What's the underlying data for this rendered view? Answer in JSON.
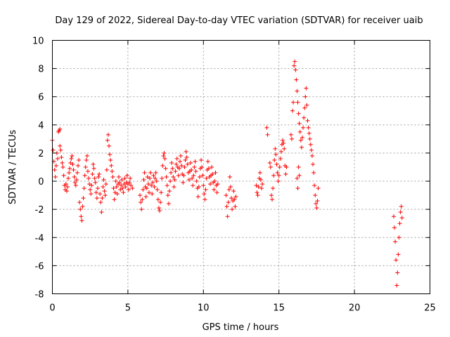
{
  "chart_data": {
    "type": "scatter",
    "title": "Day 129 of 2022, Sidereal Day-to-day VTEC variation (SDTVAR) for receiver uaib",
    "xlabel": "GPS time / hours",
    "ylabel": "SDTVAR / TECUs",
    "xlim": [
      0,
      25
    ],
    "ylim": [
      -8,
      10
    ],
    "xticks": [
      "0",
      "5",
      "10",
      "15",
      "20",
      "25"
    ],
    "yticks": [
      "-8",
      "-6",
      "-4",
      "-2",
      "0",
      "2",
      "4",
      "6",
      "8",
      "10"
    ],
    "grid": true,
    "marker": "plus",
    "color": "#ff0000",
    "series": [
      {
        "name": "SDTVAR",
        "points": [
          [
            0.0,
            2.9
          ],
          [
            0.05,
            2.2
          ],
          [
            0.1,
            1.4
          ],
          [
            0.15,
            0.8
          ],
          [
            0.2,
            0.3
          ],
          [
            0.25,
            1.1
          ],
          [
            0.3,
            2.0
          ],
          [
            0.35,
            1.6
          ],
          [
            0.4,
            3.5
          ],
          [
            0.45,
            3.6
          ],
          [
            0.5,
            3.7
          ],
          [
            0.5,
            2.5
          ],
          [
            0.55,
            2.2
          ],
          [
            0.6,
            1.7
          ],
          [
            0.65,
            1.3
          ],
          [
            0.7,
            1.0
          ],
          [
            0.75,
            0.4
          ],
          [
            0.8,
            -0.3
          ],
          [
            0.85,
            -0.6
          ],
          [
            0.9,
            -0.2
          ],
          [
            0.95,
            -0.7
          ],
          [
            1.0,
            -0.4
          ],
          [
            1.05,
            0.2
          ],
          [
            1.1,
            0.6
          ],
          [
            1.15,
            0.9
          ],
          [
            1.2,
            1.3
          ],
          [
            1.25,
            1.6
          ],
          [
            1.3,
            1.8
          ],
          [
            1.35,
            1.2
          ],
          [
            1.4,
            0.8
          ],
          [
            1.45,
            0.3
          ],
          [
            1.5,
            -0.1
          ],
          [
            1.55,
            -0.3
          ],
          [
            1.6,
            0.1
          ],
          [
            1.65,
            0.6
          ],
          [
            1.7,
            1.1
          ],
          [
            1.75,
            1.5
          ],
          [
            1.8,
            -1.5
          ],
          [
            1.85,
            -2.0
          ],
          [
            1.9,
            -2.5
          ],
          [
            1.95,
            -2.8
          ],
          [
            2.0,
            -1.8
          ],
          [
            2.05,
            -1.2
          ],
          [
            2.1,
            -0.5
          ],
          [
            2.15,
            0.4
          ],
          [
            2.2,
            1.0
          ],
          [
            2.25,
            1.5
          ],
          [
            2.3,
            1.8
          ],
          [
            2.35,
            0.7
          ],
          [
            2.4,
            0.2
          ],
          [
            2.45,
            -0.2
          ],
          [
            2.5,
            -0.6
          ],
          [
            2.55,
            -0.9
          ],
          [
            2.6,
            -0.3
          ],
          [
            2.65,
            0.5
          ],
          [
            2.7,
            1.2
          ],
          [
            2.75,
            0.9
          ],
          [
            2.8,
            0.2
          ],
          [
            2.85,
            -0.1
          ],
          [
            2.9,
            -0.8
          ],
          [
            2.95,
            -1.2
          ],
          [
            3.0,
            -0.5
          ],
          [
            3.05,
            0.3
          ],
          [
            3.1,
            0.5
          ],
          [
            3.15,
            -0.9
          ],
          [
            3.2,
            -1.5
          ],
          [
            3.25,
            -2.2
          ],
          [
            3.3,
            -1.2
          ],
          [
            3.35,
            -0.4
          ],
          [
            3.4,
            0.1
          ],
          [
            3.45,
            -0.7
          ],
          [
            3.5,
            -1.0
          ],
          [
            3.55,
            -0.2
          ],
          [
            3.6,
            0.8
          ],
          [
            3.65,
            2.9
          ],
          [
            3.7,
            3.3
          ],
          [
            3.75,
            2.5
          ],
          [
            3.8,
            1.9
          ],
          [
            3.85,
            1.5
          ],
          [
            3.9,
            1.1
          ],
          [
            3.95,
            0.7
          ],
          [
            4.0,
            0.3
          ],
          [
            4.05,
            -0.5
          ],
          [
            4.1,
            -1.3
          ],
          [
            4.15,
            -0.8
          ],
          [
            4.2,
            0.0
          ],
          [
            4.25,
            -0.4
          ],
          [
            4.3,
            -0.9
          ],
          [
            4.35,
            -0.2
          ],
          [
            4.4,
            0.3
          ],
          [
            4.45,
            -0.1
          ],
          [
            4.5,
            -0.6
          ],
          [
            4.55,
            -0.3
          ],
          [
            4.6,
            0.1
          ],
          [
            4.65,
            -0.5
          ],
          [
            4.7,
            -0.8
          ],
          [
            4.75,
            -0.2
          ],
          [
            4.8,
            0.2
          ],
          [
            4.85,
            -0.4
          ],
          [
            4.9,
            -0.1
          ],
          [
            4.95,
            0.4
          ],
          [
            5.0,
            -0.2
          ],
          [
            5.05,
            -0.6
          ],
          [
            5.1,
            -0.1
          ],
          [
            5.15,
            0.2
          ],
          [
            5.2,
            -0.3
          ],
          [
            5.3,
            -0.5
          ],
          [
            5.8,
            -1.0
          ],
          [
            5.85,
            -1.5
          ],
          [
            5.9,
            -2.0
          ],
          [
            5.95,
            -1.3
          ],
          [
            6.0,
            -0.6
          ],
          [
            6.05,
            0.1
          ],
          [
            6.1,
            0.6
          ],
          [
            6.15,
            -0.4
          ],
          [
            6.2,
            -1.1
          ],
          [
            6.25,
            -0.5
          ],
          [
            6.3,
            0.3
          ],
          [
            6.35,
            -0.2
          ],
          [
            6.4,
            -0.8
          ],
          [
            6.45,
            0.2
          ],
          [
            6.5,
            0.6
          ],
          [
            6.55,
            -0.3
          ],
          [
            6.6,
            -0.9
          ],
          [
            6.65,
            -0.1
          ],
          [
            6.7,
            0.4
          ],
          [
            6.75,
            -0.4
          ],
          [
            6.8,
            0.2
          ],
          [
            6.85,
            0.6
          ],
          [
            6.9,
            0.0
          ],
          [
            6.95,
            -0.6
          ],
          [
            7.0,
            -1.3
          ],
          [
            7.05,
            -1.9
          ],
          [
            7.1,
            -2.1
          ],
          [
            7.15,
            -1.5
          ],
          [
            7.2,
            -0.8
          ],
          [
            7.25,
            0.2
          ],
          [
            7.3,
            1.1
          ],
          [
            7.35,
            1.8
          ],
          [
            7.4,
            2.0
          ],
          [
            7.45,
            1.6
          ],
          [
            7.5,
            0.9
          ],
          [
            7.55,
            0.3
          ],
          [
            7.6,
            -0.3
          ],
          [
            7.65,
            -1.0
          ],
          [
            7.7,
            -1.6
          ],
          [
            7.75,
            -0.7
          ],
          [
            7.8,
            0.0
          ],
          [
            7.85,
            0.6
          ],
          [
            7.9,
            1.3
          ],
          [
            7.95,
            0.9
          ],
          [
            8.0,
            0.3
          ],
          [
            8.05,
            -0.4
          ],
          [
            8.1,
            0.1
          ],
          [
            8.15,
            0.7
          ],
          [
            8.2,
            1.2
          ],
          [
            8.25,
            1.6
          ],
          [
            8.3,
            1.0
          ],
          [
            8.35,
            0.4
          ],
          [
            8.4,
            0.9
          ],
          [
            8.45,
            1.4
          ],
          [
            8.5,
            1.8
          ],
          [
            8.55,
            1.1
          ],
          [
            8.6,
            0.5
          ],
          [
            8.65,
            -0.1
          ],
          [
            8.7,
            0.4
          ],
          [
            8.75,
            1.0
          ],
          [
            8.8,
            1.5
          ],
          [
            8.85,
            2.1
          ],
          [
            8.9,
            1.7
          ],
          [
            8.95,
            1.2
          ],
          [
            9.0,
            0.6
          ],
          [
            9.05,
            0.1
          ],
          [
            9.1,
            0.7
          ],
          [
            9.15,
            1.3
          ],
          [
            9.2,
            0.8
          ],
          [
            9.25,
            0.2
          ],
          [
            9.3,
            -0.3
          ],
          [
            9.35,
            0.4
          ],
          [
            9.4,
            1.0
          ],
          [
            9.45,
            1.4
          ],
          [
            9.5,
            0.7
          ],
          [
            9.55,
            0.0
          ],
          [
            9.6,
            -0.5
          ],
          [
            9.65,
            -1.1
          ],
          [
            9.7,
            -0.4
          ],
          [
            9.75,
            0.3
          ],
          [
            9.8,
            0.9
          ],
          [
            9.85,
            1.5
          ],
          [
            9.9,
            1.0
          ],
          [
            9.95,
            0.4
          ],
          [
            10.0,
            -0.3
          ],
          [
            10.05,
            -0.9
          ],
          [
            10.1,
            -1.3
          ],
          [
            10.15,
            -0.6
          ],
          [
            10.2,
            0.2
          ],
          [
            10.25,
            0.8
          ],
          [
            10.3,
            1.4
          ],
          [
            10.35,
            0.9
          ],
          [
            10.4,
            0.3
          ],
          [
            10.45,
            -0.2
          ],
          [
            10.5,
            0.4
          ],
          [
            10.55,
            1.0
          ],
          [
            10.6,
            0.5
          ],
          [
            10.65,
            -0.1
          ],
          [
            10.7,
            -0.6
          ],
          [
            10.75,
            0.0
          ],
          [
            10.8,
            0.6
          ],
          [
            10.85,
            -0.3
          ],
          [
            10.9,
            -0.8
          ],
          [
            10.95,
            -0.2
          ],
          [
            11.5,
            -1.0
          ],
          [
            11.55,
            -1.8
          ],
          [
            11.6,
            -2.5
          ],
          [
            11.65,
            -1.5
          ],
          [
            11.7,
            -0.6
          ],
          [
            11.75,
            0.3
          ],
          [
            11.8,
            -0.4
          ],
          [
            11.85,
            -1.2
          ],
          [
            11.9,
            -2.0
          ],
          [
            11.95,
            -1.4
          ],
          [
            12.0,
            -0.7
          ],
          [
            12.05,
            -1.3
          ],
          [
            12.1,
            -1.8
          ],
          [
            12.15,
            -1.1
          ],
          [
            13.5,
            -0.3
          ],
          [
            13.55,
            -0.8
          ],
          [
            13.6,
            -1.0
          ],
          [
            13.65,
            -0.4
          ],
          [
            13.7,
            0.2
          ],
          [
            13.75,
            0.6
          ],
          [
            13.8,
            0.1
          ],
          [
            13.85,
            -0.5
          ],
          [
            13.9,
            -0.2
          ],
          [
            14.2,
            3.8
          ],
          [
            14.25,
            3.3
          ],
          [
            14.4,
            1.3
          ],
          [
            14.45,
            1.0
          ],
          [
            14.5,
            -1.0
          ],
          [
            14.55,
            -1.3
          ],
          [
            14.6,
            -0.5
          ],
          [
            14.65,
            0.4
          ],
          [
            14.7,
            1.5
          ],
          [
            14.75,
            2.3
          ],
          [
            14.8,
            1.9
          ],
          [
            14.85,
            1.2
          ],
          [
            14.9,
            0.6
          ],
          [
            14.95,
            0.0
          ],
          [
            15.0,
            0.4
          ],
          [
            15.05,
            1.0
          ],
          [
            15.1,
            1.6
          ],
          [
            15.15,
            2.1
          ],
          [
            15.2,
            2.6
          ],
          [
            15.25,
            2.9
          ],
          [
            15.3,
            2.7
          ],
          [
            15.35,
            2.3
          ],
          [
            15.4,
            1.1
          ],
          [
            15.45,
            0.5
          ],
          [
            15.5,
            1.0
          ],
          [
            15.8,
            3.3
          ],
          [
            15.85,
            3.0
          ],
          [
            15.9,
            5.0
          ],
          [
            15.95,
            5.6
          ],
          [
            16.0,
            8.2
          ],
          [
            16.05,
            8.5
          ],
          [
            16.1,
            7.9
          ],
          [
            16.15,
            7.2
          ],
          [
            16.2,
            6.4
          ],
          [
            16.2,
            0.2
          ],
          [
            16.25,
            5.6
          ],
          [
            16.25,
            -0.5
          ],
          [
            16.3,
            4.8
          ],
          [
            16.3,
            1.0
          ],
          [
            16.35,
            4.1
          ],
          [
            16.35,
            0.4
          ],
          [
            16.4,
            3.5
          ],
          [
            16.45,
            2.9
          ],
          [
            16.5,
            2.4
          ],
          [
            16.55,
            3.1
          ],
          [
            16.6,
            3.8
          ],
          [
            16.65,
            4.5
          ],
          [
            16.7,
            5.2
          ],
          [
            16.75,
            6.0
          ],
          [
            16.8,
            6.6
          ],
          [
            16.85,
            5.4
          ],
          [
            16.9,
            4.3
          ],
          [
            16.95,
            3.8
          ],
          [
            17.0,
            3.4
          ],
          [
            17.05,
            3.0
          ],
          [
            17.1,
            2.6
          ],
          [
            17.15,
            2.2
          ],
          [
            17.2,
            1.8
          ],
          [
            17.25,
            1.2
          ],
          [
            17.3,
            0.6
          ],
          [
            17.35,
            -0.3
          ],
          [
            17.4,
            -1.0
          ],
          [
            17.45,
            -1.6
          ],
          [
            17.5,
            -1.9
          ],
          [
            17.55,
            -1.4
          ],
          [
            17.6,
            -0.5
          ],
          [
            22.6,
            -2.5
          ],
          [
            22.65,
            -3.3
          ],
          [
            22.7,
            -4.3
          ],
          [
            22.75,
            -5.6
          ],
          [
            22.8,
            -7.4
          ],
          [
            22.85,
            -6.5
          ],
          [
            22.9,
            -5.2
          ],
          [
            22.95,
            -4.0
          ],
          [
            23.0,
            -3.0
          ],
          [
            23.05,
            -2.2
          ],
          [
            23.1,
            -1.8
          ],
          [
            23.15,
            -2.6
          ]
        ]
      }
    ]
  }
}
